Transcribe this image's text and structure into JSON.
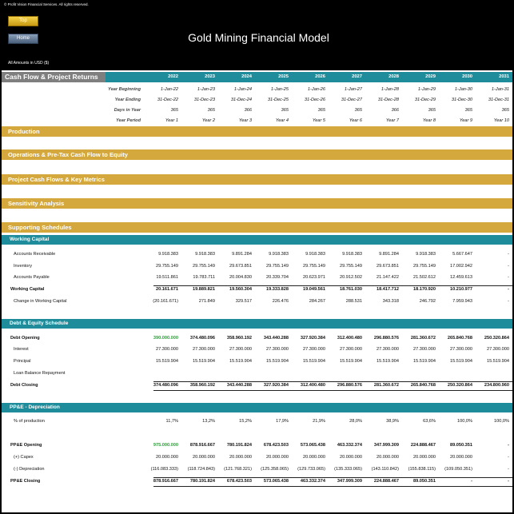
{
  "header": {
    "copyright": "© Profit Vision Financial Services. All rights reserved.",
    "buttons": [
      "Top",
      "Home"
    ],
    "title": "Gold Mining Financial Model",
    "units": "All Amounts in  USD ($)"
  },
  "sheet": {
    "title": "Cash Flow & Project Returns",
    "years": [
      2022,
      2023,
      2024,
      2025,
      2026,
      2027,
      2028,
      2029,
      2030,
      2031
    ],
    "timing": [
      {
        "label": "Year Beginning",
        "values": [
          "1-Jan-22",
          "1-Jan-23",
          "1-Jan-24",
          "1-Jan-25",
          "1-Jan-26",
          "1-Jan-27",
          "1-Jan-28",
          "1-Jan-29",
          "1-Jan-30",
          "1-Jan-31"
        ]
      },
      {
        "label": "Year Ending",
        "values": [
          "31-Dec-22",
          "31-Dec-23",
          "31-Dec-24",
          "31-Dec-25",
          "31-Dec-26",
          "31-Dec-27",
          "31-Dec-28",
          "31-Dec-29",
          "31-Dec-30",
          "31-Dec-31"
        ]
      },
      {
        "label": "Days in Year",
        "values": [
          "365",
          "365",
          "366",
          "365",
          "365",
          "365",
          "366",
          "365",
          "365",
          "365"
        ]
      },
      {
        "label": "Year Period",
        "values": [
          "Year 1",
          "Year 2",
          "Year 3",
          "Year 4",
          "Year 5",
          "Year 6",
          "Year 7",
          "Year 8",
          "Year 9",
          "Year 10"
        ]
      }
    ]
  },
  "sections": [
    "Production",
    "Operations & Pre-Tax Cash Flow to Equity",
    "Project Cash Flows & Key Metrics",
    "Sensitivity Analysis",
    "Supporting Schedules"
  ],
  "schedules": [
    {
      "title": "Working Capital",
      "rows": [
        {
          "label": "Accounts Receivable",
          "values": [
            "9.918.383",
            "9.918.383",
            "9.891.284",
            "9.918.383",
            "9.918.383",
            "9.918.383",
            "9.891.284",
            "9.918.383",
            "5.667.647",
            "-"
          ]
        },
        {
          "label": "Inventory",
          "values": [
            "29.755.149",
            "29.755.149",
            "29.673.851",
            "29.755.149",
            "29.755.149",
            "29.755.149",
            "29.673.851",
            "29.755.149",
            "17.002.942",
            "-"
          ]
        },
        {
          "label": "Accounts Payable",
          "values": [
            "19.511.861",
            "19.783.711",
            "20.004.830",
            "20.339.704",
            "20.623.971",
            "20.912.502",
            "21.147.422",
            "21.502.612",
            "12.459.613",
            "-"
          ]
        },
        {
          "label": "Working Capital",
          "values": [
            "20.161.671",
            "19.889.821",
            "19.560.304",
            "19.333.828",
            "19.049.561",
            "18.761.030",
            "18.417.712",
            "18.170.920",
            "10.210.977",
            "-"
          ]
        },
        {
          "label": "Change in Working Capital",
          "values": [
            "(20.161.671)",
            "271.849",
            "329.517",
            "226.476",
            "284.267",
            "288.531",
            "343.318",
            "246.792",
            "7.959.943",
            "-"
          ]
        }
      ]
    },
    {
      "title": "Debt & Equity Schedule",
      "rows": [
        {
          "label": "Debt Opening",
          "values": [
            "390.000.000",
            "374.480.096",
            "358.960.192",
            "343.440.288",
            "327.920.384",
            "312.400.480",
            "296.880.576",
            "281.360.672",
            "265.840.768",
            "250.320.864"
          ]
        },
        {
          "label": "Interest",
          "values": [
            "27.300.000",
            "27.300.000",
            "27.300.000",
            "27.300.000",
            "27.300.000",
            "27.300.000",
            "27.300.000",
            "27.300.000",
            "27.300.000",
            "27.300.000"
          ]
        },
        {
          "label": "Principal",
          "values": [
            "15.519.904",
            "15.519.904",
            "15.519.904",
            "15.519.904",
            "15.519.904",
            "15.519.904",
            "15.519.904",
            "15.519.904",
            "15.519.904",
            "15.519.904"
          ]
        },
        {
          "label": "Loan Balance Repayment"
        },
        {
          "label": "Debt Closing",
          "values": [
            "374.480.096",
            "358.960.192",
            "343.440.288",
            "327.920.384",
            "312.400.480",
            "296.880.576",
            "281.360.672",
            "265.840.768",
            "250.320.864",
            "234.800.960"
          ]
        }
      ]
    },
    {
      "title": "PP&E - Depreciation",
      "rows": [
        {
          "label": "% of production",
          "values": [
            "11,7%",
            "13,2%",
            "15,2%",
            "17,9%",
            "21,9%",
            "28,0%",
            "38,9%",
            "63,6%",
            "100,0%",
            "100,0%"
          ]
        },
        {
          "label": "PP&E Opening",
          "values": [
            "975.000.000",
            "878.916.667",
            "780.191.824",
            "678.423.503",
            "573.065.438",
            "463.332.374",
            "347.999.309",
            "224.888.467",
            "89.050.351",
            "-"
          ]
        },
        {
          "label": "(+) Capex",
          "values": [
            "20.000.000",
            "20.000.000",
            "20.000.000",
            "20.000.000",
            "20.000.000",
            "20.000.000",
            "20.000.000",
            "20.000.000",
            "20.000.000",
            "-"
          ]
        },
        {
          "label": "(-) Depreciation",
          "values": [
            "(116.083.333)",
            "(118.724.843)",
            "(121.768.321)",
            "(125.358.065)",
            "(129.733.065)",
            "(135.333.065)",
            "(143.110.842)",
            "(155.838.115)",
            "(109.050.351)",
            "-"
          ]
        },
        {
          "label": "PP&E Closing",
          "values": [
            "878.916.667",
            "780.191.824",
            "678.423.503",
            "573.065.438",
            "463.332.374",
            "347.999.309",
            "224.888.467",
            "89.050.351",
            "-",
            "-"
          ]
        }
      ]
    }
  ]
}
